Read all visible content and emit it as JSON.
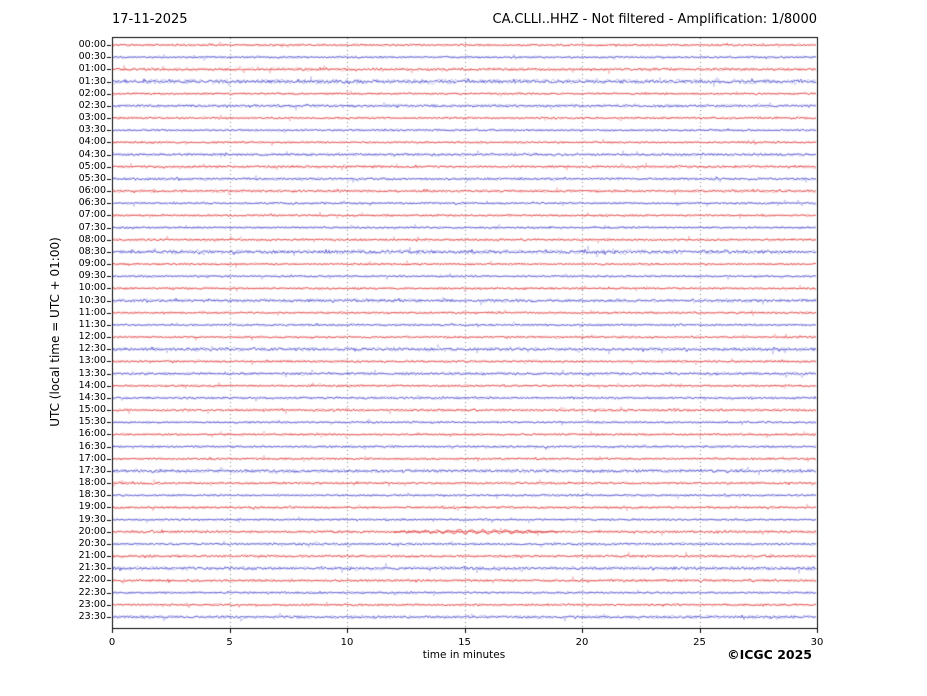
{
  "header": {
    "date": "17-11-2025",
    "title": "CA.CLLI..HHZ - Not filtered - Amplification: 1/8000"
  },
  "axes": {
    "y_title": "UTC (local time = UTC + 01:00)",
    "x_title": "time in minutes"
  },
  "footer": {
    "copyright": "©ICGC 2025"
  },
  "colors": {
    "trace_hour_red": "#e03a3a",
    "trace_half_hour_blue": "#4a4acc",
    "grid": "#8a8a8a",
    "border": "#000000",
    "background": "#ffffff",
    "text": "#000000"
  },
  "chart_data": {
    "type": "line",
    "subtype": "helicorder-seismogram",
    "title": "CA.CLLI..HHZ - Not filtered - Amplification: 1/8000",
    "date": "17-11-2025",
    "station": "CA.CLLI..HHZ",
    "filter": "Not filtered",
    "amplification": "1/8000",
    "xlabel": "time in minutes",
    "ylabel": "UTC (local time = UTC + 01:00)",
    "xlim": [
      0,
      30
    ],
    "x_ticks": [
      0,
      5,
      10,
      15,
      20,
      25,
      30
    ],
    "grid_minutes": [
      5,
      10,
      15,
      20,
      25
    ],
    "grid_style": "vertical dotted gray lines at 5-minute intervals",
    "legend": "none",
    "row_color_rule": "traces starting on the hour (:00) are red, half-hour traces (:30) are blue; each row is 30 minutes of low-amplitude background noise",
    "rows": [
      {
        "time": "00:00",
        "color": "red",
        "noise": 1.0
      },
      {
        "time": "00:30",
        "color": "blue",
        "noise": 1.0
      },
      {
        "time": "01:00",
        "color": "red",
        "noise": 1.3
      },
      {
        "time": "01:30",
        "color": "blue",
        "noise": 1.8
      },
      {
        "time": "02:00",
        "color": "red",
        "noise": 1.0
      },
      {
        "time": "02:30",
        "color": "blue",
        "noise": 1.3
      },
      {
        "time": "03:00",
        "color": "red",
        "noise": 1.0
      },
      {
        "time": "03:30",
        "color": "blue",
        "noise": 1.0
      },
      {
        "time": "04:00",
        "color": "red",
        "noise": 1.0
      },
      {
        "time": "04:30",
        "color": "blue",
        "noise": 1.2
      },
      {
        "time": "05:00",
        "color": "red",
        "noise": 1.2
      },
      {
        "time": "05:30",
        "color": "blue",
        "noise": 1.2
      },
      {
        "time": "06:00",
        "color": "red",
        "noise": 1.2
      },
      {
        "time": "06:30",
        "color": "blue",
        "noise": 1.0
      },
      {
        "time": "07:00",
        "color": "red",
        "noise": 1.0
      },
      {
        "time": "07:30",
        "color": "blue",
        "noise": 1.0
      },
      {
        "time": "08:00",
        "color": "red",
        "noise": 1.1
      },
      {
        "time": "08:30",
        "color": "blue",
        "noise": 1.7
      },
      {
        "time": "09:00",
        "color": "red",
        "noise": 1.0
      },
      {
        "time": "09:30",
        "color": "blue",
        "noise": 1.0
      },
      {
        "time": "10:00",
        "color": "red",
        "noise": 1.0
      },
      {
        "time": "10:30",
        "color": "blue",
        "noise": 1.4
      },
      {
        "time": "11:00",
        "color": "red",
        "noise": 1.0
      },
      {
        "time": "11:30",
        "color": "blue",
        "noise": 1.0
      },
      {
        "time": "12:00",
        "color": "red",
        "noise": 1.0
      },
      {
        "time": "12:30",
        "color": "blue",
        "noise": 1.5
      },
      {
        "time": "13:00",
        "color": "red",
        "noise": 1.1
      },
      {
        "time": "13:30",
        "color": "blue",
        "noise": 1.3
      },
      {
        "time": "14:00",
        "color": "red",
        "noise": 1.0
      },
      {
        "time": "14:30",
        "color": "blue",
        "noise": 1.1
      },
      {
        "time": "15:00",
        "color": "red",
        "noise": 1.2
      },
      {
        "time": "15:30",
        "color": "blue",
        "noise": 1.0
      },
      {
        "time": "16:00",
        "color": "red",
        "noise": 1.0
      },
      {
        "time": "16:30",
        "color": "blue",
        "noise": 1.1
      },
      {
        "time": "17:00",
        "color": "red",
        "noise": 1.0
      },
      {
        "time": "17:30",
        "color": "blue",
        "noise": 1.5
      },
      {
        "time": "18:00",
        "color": "red",
        "noise": 1.1
      },
      {
        "time": "18:30",
        "color": "blue",
        "noise": 1.0
      },
      {
        "time": "19:00",
        "color": "red",
        "noise": 1.1
      },
      {
        "time": "19:30",
        "color": "blue",
        "noise": 1.0
      },
      {
        "time": "20:00",
        "color": "red",
        "noise": 1.2
      },
      {
        "time": "20:30",
        "color": "blue",
        "noise": 1.1
      },
      {
        "time": "21:00",
        "color": "red",
        "noise": 1.2
      },
      {
        "time": "21:30",
        "color": "blue",
        "noise": 1.5
      },
      {
        "time": "22:00",
        "color": "red",
        "noise": 1.2
      },
      {
        "time": "22:30",
        "color": "blue",
        "noise": 1.0
      },
      {
        "time": "23:00",
        "color": "red",
        "noise": 1.0
      },
      {
        "time": "23:30",
        "color": "blue",
        "noise": 1.3
      }
    ],
    "events": [
      {
        "row": "20:00",
        "start_min": 12,
        "end_min": 19,
        "relative_amplitude": 2.2,
        "description": "small oscillation burst slightly above background noise"
      }
    ]
  }
}
